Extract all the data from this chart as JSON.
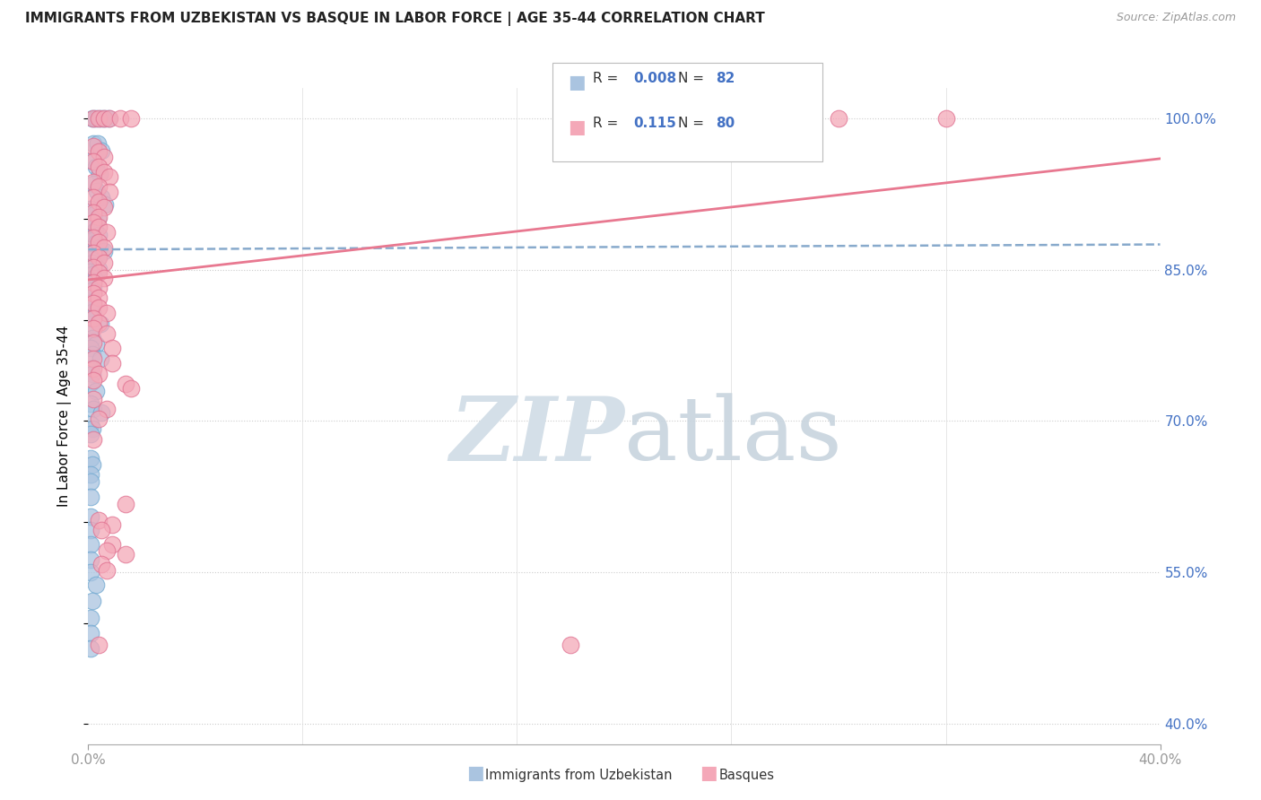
{
  "title": "IMMIGRANTS FROM UZBEKISTAN VS BASQUE IN LABOR FORCE | AGE 35-44 CORRELATION CHART",
  "source": "Source: ZipAtlas.com",
  "ylabel": "In Labor Force | Age 35-44",
  "xmin": 0.0,
  "xmax": 40.0,
  "ymin": 0.38,
  "ymax": 1.03,
  "yticks": [
    0.4,
    0.55,
    0.7,
    0.85,
    1.0
  ],
  "ytick_labels": [
    "40.0%",
    "55.0%",
    "70.0%",
    "85.0%",
    "100.0%"
  ],
  "xtick_labels": [
    "0.0%",
    "40.0%"
  ],
  "legend_r_uzbek": "0.008",
  "legend_n_uzbek": "82",
  "legend_r_basque": "0.115",
  "legend_n_basque": "80",
  "uzbek_color": "#aac4e0",
  "uzbek_edge": "#6fa8d0",
  "basque_color": "#f4a8b8",
  "basque_edge": "#e07090",
  "uzbek_trend_color": "#88aacc",
  "basque_trend_color": "#e87890",
  "uzbek_scatter": [
    [
      0.15,
      1.0
    ],
    [
      0.3,
      1.0
    ],
    [
      0.45,
      1.0
    ],
    [
      0.6,
      1.0
    ],
    [
      0.75,
      1.0
    ],
    [
      0.2,
      0.975
    ],
    [
      0.35,
      0.975
    ],
    [
      0.5,
      0.968
    ],
    [
      0.15,
      0.958
    ],
    [
      0.28,
      0.952
    ],
    [
      0.42,
      0.945
    ],
    [
      0.18,
      0.935
    ],
    [
      0.32,
      0.928
    ],
    [
      0.48,
      0.922
    ],
    [
      0.62,
      0.915
    ],
    [
      0.1,
      0.91
    ],
    [
      0.22,
      0.905
    ],
    [
      0.36,
      0.9
    ],
    [
      0.12,
      0.893
    ],
    [
      0.24,
      0.889
    ],
    [
      0.38,
      0.884
    ],
    [
      0.08,
      0.882
    ],
    [
      0.16,
      0.879
    ],
    [
      0.28,
      0.876
    ],
    [
      0.42,
      0.872
    ],
    [
      0.58,
      0.868
    ],
    [
      0.06,
      0.87
    ],
    [
      0.14,
      0.867
    ],
    [
      0.24,
      0.864
    ],
    [
      0.36,
      0.861
    ],
    [
      0.07,
      0.86
    ],
    [
      0.15,
      0.857
    ],
    [
      0.26,
      0.854
    ],
    [
      0.38,
      0.851
    ],
    [
      0.06,
      0.848
    ],
    [
      0.14,
      0.845
    ],
    [
      0.22,
      0.842
    ],
    [
      0.05,
      0.84
    ],
    [
      0.12,
      0.837
    ],
    [
      0.2,
      0.834
    ],
    [
      0.06,
      0.832
    ],
    [
      0.13,
      0.829
    ],
    [
      0.07,
      0.822
    ],
    [
      0.15,
      0.818
    ],
    [
      0.06,
      0.812
    ],
    [
      0.14,
      0.808
    ],
    [
      0.07,
      0.802
    ],
    [
      0.45,
      0.796
    ],
    [
      0.08,
      0.79
    ],
    [
      0.16,
      0.782
    ],
    [
      0.3,
      0.776
    ],
    [
      0.07,
      0.772
    ],
    [
      0.16,
      0.766
    ],
    [
      0.45,
      0.762
    ],
    [
      0.08,
      0.752
    ],
    [
      0.16,
      0.747
    ],
    [
      0.07,
      0.738
    ],
    [
      0.3,
      0.73
    ],
    [
      0.08,
      0.717
    ],
    [
      0.18,
      0.712
    ],
    [
      0.5,
      0.708
    ],
    [
      0.07,
      0.697
    ],
    [
      0.16,
      0.692
    ],
    [
      0.07,
      0.687
    ],
    [
      0.07,
      0.663
    ],
    [
      0.16,
      0.657
    ],
    [
      0.07,
      0.647
    ],
    [
      0.07,
      0.64
    ],
    [
      0.07,
      0.625
    ],
    [
      0.07,
      0.605
    ],
    [
      0.07,
      0.592
    ],
    [
      0.07,
      0.578
    ],
    [
      0.07,
      0.563
    ],
    [
      0.07,
      0.55
    ],
    [
      0.3,
      0.538
    ],
    [
      0.16,
      0.522
    ],
    [
      0.07,
      0.505
    ],
    [
      0.07,
      0.49
    ],
    [
      0.07,
      0.475
    ]
  ],
  "basque_scatter": [
    [
      0.2,
      1.0
    ],
    [
      0.4,
      1.0
    ],
    [
      0.6,
      1.0
    ],
    [
      0.8,
      1.0
    ],
    [
      1.2,
      1.0
    ],
    [
      1.6,
      1.0
    ],
    [
      28.0,
      1.0
    ],
    [
      32.0,
      1.0
    ],
    [
      0.2,
      0.972
    ],
    [
      0.4,
      0.967
    ],
    [
      0.6,
      0.962
    ],
    [
      0.2,
      0.957
    ],
    [
      0.4,
      0.952
    ],
    [
      0.6,
      0.947
    ],
    [
      0.8,
      0.942
    ],
    [
      0.2,
      0.937
    ],
    [
      0.4,
      0.932
    ],
    [
      0.8,
      0.927
    ],
    [
      0.2,
      0.922
    ],
    [
      0.4,
      0.917
    ],
    [
      0.6,
      0.912
    ],
    [
      0.2,
      0.907
    ],
    [
      0.4,
      0.902
    ],
    [
      0.2,
      0.897
    ],
    [
      0.4,
      0.892
    ],
    [
      0.7,
      0.887
    ],
    [
      0.2,
      0.882
    ],
    [
      0.4,
      0.877
    ],
    [
      0.6,
      0.872
    ],
    [
      0.2,
      0.867
    ],
    [
      0.4,
      0.862
    ],
    [
      0.6,
      0.857
    ],
    [
      0.2,
      0.852
    ],
    [
      0.4,
      0.847
    ],
    [
      0.6,
      0.842
    ],
    [
      0.2,
      0.837
    ],
    [
      0.4,
      0.832
    ],
    [
      0.2,
      0.827
    ],
    [
      0.4,
      0.822
    ],
    [
      0.2,
      0.817
    ],
    [
      0.4,
      0.812
    ],
    [
      0.7,
      0.807
    ],
    [
      0.2,
      0.802
    ],
    [
      0.4,
      0.797
    ],
    [
      0.2,
      0.792
    ],
    [
      0.7,
      0.787
    ],
    [
      0.2,
      0.778
    ],
    [
      0.9,
      0.772
    ],
    [
      0.2,
      0.762
    ],
    [
      0.9,
      0.757
    ],
    [
      0.2,
      0.752
    ],
    [
      0.4,
      0.747
    ],
    [
      0.2,
      0.74
    ],
    [
      1.4,
      0.737
    ],
    [
      1.6,
      0.732
    ],
    [
      0.2,
      0.722
    ],
    [
      0.7,
      0.712
    ],
    [
      0.4,
      0.702
    ],
    [
      0.2,
      0.682
    ],
    [
      1.4,
      0.618
    ],
    [
      0.4,
      0.602
    ],
    [
      0.9,
      0.597
    ],
    [
      0.5,
      0.592
    ],
    [
      0.9,
      0.578
    ],
    [
      0.7,
      0.572
    ],
    [
      1.4,
      0.568
    ],
    [
      0.5,
      0.558
    ],
    [
      0.7,
      0.552
    ],
    [
      0.4,
      0.478
    ],
    [
      18.0,
      0.478
    ]
  ],
  "uzbek_trend_x": [
    0.0,
    40.0
  ],
  "uzbek_trend_y": [
    0.87,
    0.875
  ],
  "basque_trend_x": [
    0.0,
    40.0
  ],
  "basque_trend_y": [
    0.84,
    0.96
  ]
}
